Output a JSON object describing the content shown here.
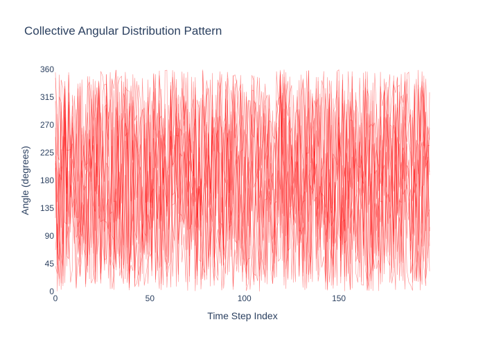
{
  "chart_data": {
    "type": "line",
    "title": "Collective Angular Distribution Pattern",
    "xlabel": "Time Step Index",
    "ylabel": "Angle (degrees)",
    "xlim": [
      0,
      198
    ],
    "ylim": [
      0,
      360
    ],
    "x_ticks": [
      0,
      50,
      100,
      150
    ],
    "y_ticks": [
      0,
      45,
      90,
      135,
      180,
      225,
      270,
      315,
      360
    ],
    "grid": false,
    "legend": "none",
    "line_color": "#ff0000",
    "n_series": 12,
    "n_points": 199
  }
}
